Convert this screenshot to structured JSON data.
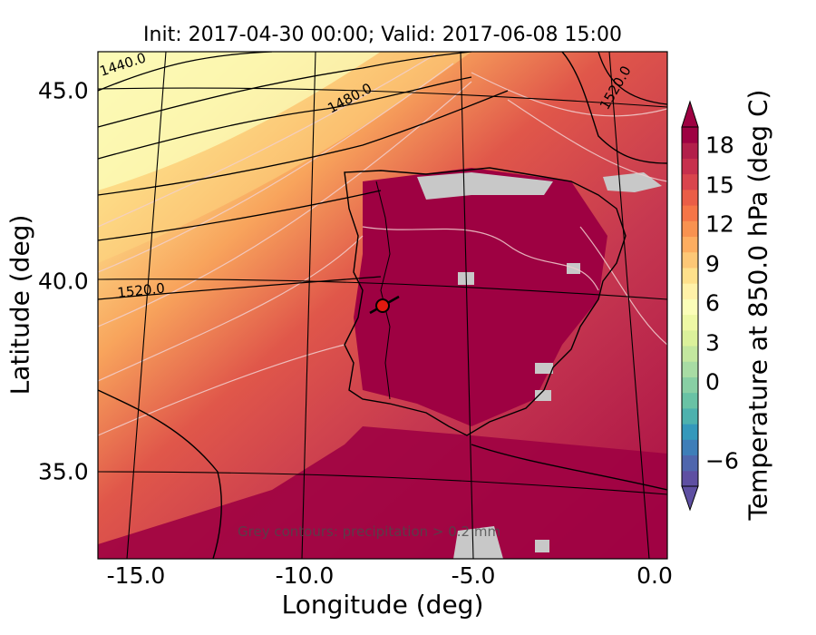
{
  "title": "Init: 2017-04-30 00:00; Valid: 2017-06-08 15:00",
  "xlabel": "Longitude (deg)",
  "ylabel": "Latitude (deg)",
  "colorbar": {
    "label": "Temperature at 850.0 hPa (deg C)",
    "ticks": [
      "18",
      "15",
      "12",
      "9",
      "6",
      "3",
      "0",
      "−6"
    ],
    "colors": [
      "#5e4fa2",
      "#4f66ad",
      "#3e7eb8",
      "#3498bb",
      "#4db1ae",
      "#69c2a5",
      "#88cfa4",
      "#a8dca4",
      "#c3e79f",
      "#dbf19b",
      "#eef8a5",
      "#fbfdb8",
      "#fff1a8",
      "#fee08b",
      "#fdc776",
      "#fdad60",
      "#f89250",
      "#f57547",
      "#ea5d47",
      "#d9454d",
      "#c7304d",
      "#b21f4a",
      "#9e0142"
    ]
  },
  "xticks": [
    "-15.0",
    "-10.0",
    "-5.0",
    "0.0"
  ],
  "yticks": [
    "45.0",
    "40.0",
    "35.0"
  ],
  "contour_labels": [
    "1440.0",
    "1480.0",
    "1520.0",
    "1520.0"
  ],
  "annotation": "Grey contours: precipitation > 0.2 mm",
  "map": {
    "lon_range": [
      -16,
      0
    ],
    "lat_range": [
      32.5,
      46
    ],
    "marker": {
      "lon": -7.5,
      "lat": 39.3,
      "color": "#e0190f"
    }
  }
}
